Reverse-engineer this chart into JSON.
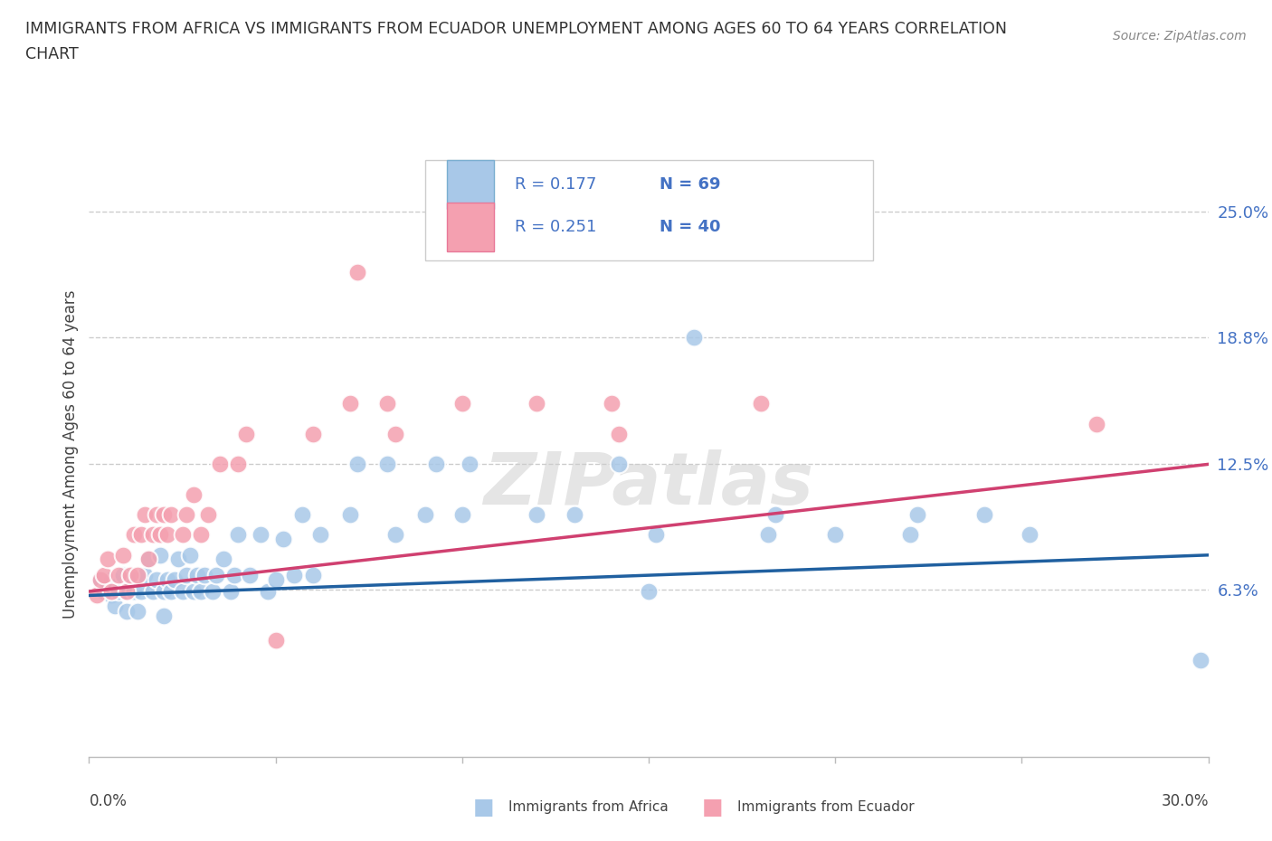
{
  "title_line1": "IMMIGRANTS FROM AFRICA VS IMMIGRANTS FROM ECUADOR UNEMPLOYMENT AMONG AGES 60 TO 64 YEARS CORRELATION",
  "title_line2": "CHART",
  "source": "Source: ZipAtlas.com",
  "ylabel": "Unemployment Among Ages 60 to 64 years",
  "yticks": [
    0.0,
    0.063,
    0.125,
    0.188,
    0.25
  ],
  "ytick_labels": [
    "",
    "6.3%",
    "12.5%",
    "18.8%",
    "25.0%"
  ],
  "xlim": [
    0.0,
    0.3
  ],
  "ylim": [
    -0.02,
    0.28
  ],
  "africa_color": "#a8c8e8",
  "ecuador_color": "#f4a0b0",
  "africa_edge": "#7aaed0",
  "ecuador_edge": "#e87898",
  "africa_trend_color": "#2060a0",
  "ecuador_trend_color": "#d04070",
  "africa_R": 0.177,
  "africa_N": 69,
  "ecuador_R": 0.251,
  "ecuador_N": 40,
  "africa_scatter": [
    [
      0.003,
      0.068
    ],
    [
      0.004,
      0.062
    ],
    [
      0.006,
      0.06
    ],
    [
      0.006,
      0.068
    ],
    [
      0.007,
      0.055
    ],
    [
      0.008,
      0.062
    ],
    [
      0.009,
      0.07
    ],
    [
      0.01,
      0.052
    ],
    [
      0.01,
      0.062
    ],
    [
      0.011,
      0.068
    ],
    [
      0.012,
      0.062
    ],
    [
      0.013,
      0.068
    ],
    [
      0.013,
      0.052
    ],
    [
      0.014,
      0.062
    ],
    [
      0.015,
      0.07
    ],
    [
      0.016,
      0.078
    ],
    [
      0.017,
      0.062
    ],
    [
      0.018,
      0.068
    ],
    [
      0.019,
      0.08
    ],
    [
      0.02,
      0.05
    ],
    [
      0.02,
      0.062
    ],
    [
      0.021,
      0.068
    ],
    [
      0.022,
      0.062
    ],
    [
      0.023,
      0.068
    ],
    [
      0.024,
      0.078
    ],
    [
      0.025,
      0.062
    ],
    [
      0.026,
      0.07
    ],
    [
      0.027,
      0.08
    ],
    [
      0.028,
      0.062
    ],
    [
      0.029,
      0.07
    ],
    [
      0.03,
      0.062
    ],
    [
      0.031,
      0.07
    ],
    [
      0.033,
      0.062
    ],
    [
      0.034,
      0.07
    ],
    [
      0.036,
      0.078
    ],
    [
      0.038,
      0.062
    ],
    [
      0.039,
      0.07
    ],
    [
      0.04,
      0.09
    ],
    [
      0.043,
      0.07
    ],
    [
      0.046,
      0.09
    ],
    [
      0.048,
      0.062
    ],
    [
      0.05,
      0.068
    ],
    [
      0.052,
      0.088
    ],
    [
      0.055,
      0.07
    ],
    [
      0.057,
      0.1
    ],
    [
      0.06,
      0.07
    ],
    [
      0.062,
      0.09
    ],
    [
      0.07,
      0.1
    ],
    [
      0.072,
      0.125
    ],
    [
      0.08,
      0.125
    ],
    [
      0.082,
      0.09
    ],
    [
      0.09,
      0.1
    ],
    [
      0.093,
      0.125
    ],
    [
      0.1,
      0.1
    ],
    [
      0.102,
      0.125
    ],
    [
      0.12,
      0.1
    ],
    [
      0.13,
      0.1
    ],
    [
      0.142,
      0.125
    ],
    [
      0.15,
      0.062
    ],
    [
      0.152,
      0.09
    ],
    [
      0.162,
      0.188
    ],
    [
      0.182,
      0.09
    ],
    [
      0.184,
      0.1
    ],
    [
      0.2,
      0.09
    ],
    [
      0.22,
      0.09
    ],
    [
      0.222,
      0.1
    ],
    [
      0.24,
      0.1
    ],
    [
      0.252,
      0.09
    ],
    [
      0.298,
      0.028
    ]
  ],
  "ecuador_scatter": [
    [
      0.002,
      0.06
    ],
    [
      0.003,
      0.068
    ],
    [
      0.004,
      0.07
    ],
    [
      0.005,
      0.078
    ],
    [
      0.006,
      0.062
    ],
    [
      0.008,
      0.07
    ],
    [
      0.009,
      0.08
    ],
    [
      0.01,
      0.062
    ],
    [
      0.011,
      0.07
    ],
    [
      0.012,
      0.09
    ],
    [
      0.013,
      0.07
    ],
    [
      0.014,
      0.09
    ],
    [
      0.015,
      0.1
    ],
    [
      0.016,
      0.078
    ],
    [
      0.017,
      0.09
    ],
    [
      0.018,
      0.1
    ],
    [
      0.019,
      0.09
    ],
    [
      0.02,
      0.1
    ],
    [
      0.021,
      0.09
    ],
    [
      0.022,
      0.1
    ],
    [
      0.025,
      0.09
    ],
    [
      0.026,
      0.1
    ],
    [
      0.028,
      0.11
    ],
    [
      0.03,
      0.09
    ],
    [
      0.032,
      0.1
    ],
    [
      0.035,
      0.125
    ],
    [
      0.04,
      0.125
    ],
    [
      0.042,
      0.14
    ],
    [
      0.05,
      0.038
    ],
    [
      0.06,
      0.14
    ],
    [
      0.07,
      0.155
    ],
    [
      0.08,
      0.155
    ],
    [
      0.082,
      0.14
    ],
    [
      0.1,
      0.155
    ],
    [
      0.12,
      0.155
    ],
    [
      0.14,
      0.155
    ],
    [
      0.142,
      0.14
    ],
    [
      0.072,
      0.22
    ],
    [
      0.18,
      0.155
    ],
    [
      0.27,
      0.145
    ]
  ],
  "africa_trend_x": [
    0.0,
    0.3
  ],
  "africa_trend_y": [
    0.06,
    0.08
  ],
  "ecuador_trend_x": [
    0.0,
    0.3
  ],
  "ecuador_trend_y": [
    0.062,
    0.125
  ],
  "watermark": "ZIPatlas",
  "background_color": "#ffffff",
  "grid_color": "#cccccc",
  "legend_text_color": "#4472c4",
  "right_tick_color": "#4472c4"
}
